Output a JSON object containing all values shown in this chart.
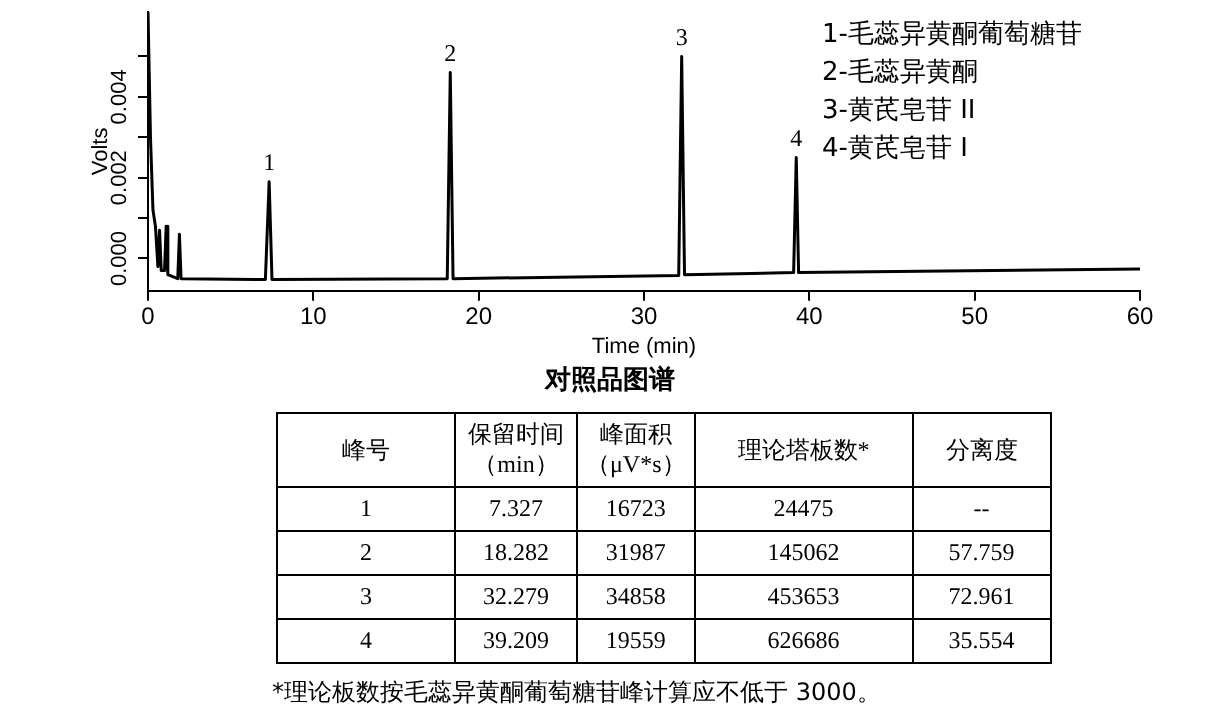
{
  "chart_data": {
    "type": "line",
    "title": "对照品图谱",
    "xlabel": "Time (min)",
    "ylabel": "Volts",
    "xlim": [
      0,
      60
    ],
    "xticks": [
      0,
      10,
      20,
      30,
      40,
      50,
      60
    ],
    "ylim": [
      -0.0008,
      0.0061
    ],
    "yticks": [
      {
        "value": 0,
        "label": "0.000"
      },
      {
        "value": 0.001,
        "label": null
      },
      {
        "value": 0.002,
        "label": "0.002"
      },
      {
        "value": 0.003,
        "label": null
      },
      {
        "value": 0.004,
        "label": "0.004"
      },
      {
        "value": 0.005,
        "label": null
      }
    ],
    "color": "#000000",
    "marker": "none",
    "line_style": "solid",
    "x": [
      0,
      0.15,
      0.3,
      0.45,
      0.6,
      0.7,
      0.8,
      1.0,
      1.1,
      1.2,
      1.8,
      1.9,
      2.0,
      7.1,
      7.327,
      7.5,
      18.1,
      18.282,
      18.45,
      32.1,
      32.279,
      32.45,
      39.05,
      39.209,
      39.35,
      60
    ],
    "values": [
      0.0061,
      0.003,
      0.0012,
      0.0008,
      -0.0002,
      0.0007,
      -0.0003,
      -0.0003,
      0.0008,
      -0.0004,
      -0.0005,
      0.0006,
      -0.0005,
      -0.00052,
      0.0019,
      -0.00052,
      -0.0005,
      0.0046,
      -0.0005,
      -0.00042,
      0.005,
      -0.0004,
      -0.00035,
      0.0025,
      -0.00035,
      -0.00026
    ],
    "annotations": [
      {
        "text": "1",
        "x": 7.327,
        "y": 0.0019
      },
      {
        "text": "2",
        "x": 18.282,
        "y": 0.0046
      },
      {
        "text": "3",
        "x": 32.279,
        "y": 0.005
      },
      {
        "text": "4",
        "x": 39.209,
        "y": 0.0025
      },
      "1-毛蕊异黄酮葡萄糖苷",
      "2-毛蕊异黄酮",
      "3-黄芪皂苷 II",
      "4-黄芪皂苷 I",
      "峰号",
      "保留时间（min）",
      "峰面积（μV*s）",
      "理论塔板数*",
      "分离度",
      "1",
      "7.327",
      "16723",
      "24475",
      "--",
      "2",
      "18.282",
      "31987",
      "145062",
      "57.759",
      "3",
      "32.279",
      "34858",
      "453653",
      "72.961",
      "4",
      "39.209",
      "19559",
      "626686",
      "35.554",
      "*理论板数按毛蕊异黄酮葡萄糖苷峰计算应不低于 3000。"
    ]
  }
}
